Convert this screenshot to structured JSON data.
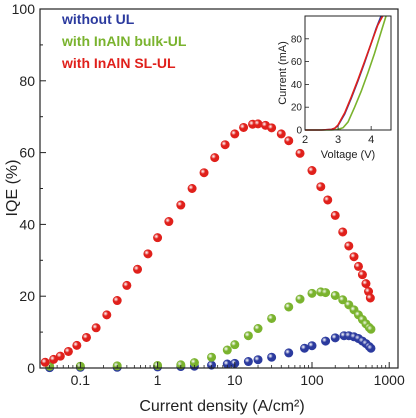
{
  "chart_data": [
    {
      "type": "scatter",
      "title": "",
      "xlabel": "Current density (A/cm²)",
      "ylabel": "IQE (%)",
      "xscale": "log",
      "xlim": [
        0.03,
        1300
      ],
      "ylim": [
        0,
        100
      ],
      "x_ticks": [
        0.1,
        1,
        10,
        100,
        1000
      ],
      "x_tick_labels": [
        "0.1",
        "1",
        "10",
        "100",
        "1000"
      ],
      "y_ticks": [
        0,
        20,
        40,
        60,
        80,
        100
      ],
      "y_tick_labels": [
        "0",
        "20",
        "40",
        "60",
        "80",
        "100"
      ],
      "legend_position": "top-left",
      "series": [
        {
          "name": "without UL",
          "color": "#2b3a9e",
          "x": [
            0.04,
            0.1,
            0.3,
            1,
            2,
            3,
            5,
            8,
            10,
            15,
            20,
            30,
            50,
            80,
            100,
            150,
            200,
            260,
            300,
            350,
            400,
            450,
            500,
            550,
            580
          ],
          "y": [
            0.1,
            0.2,
            0.2,
            0.3,
            0.4,
            0.5,
            0.8,
            1.1,
            1.3,
            1.8,
            2.3,
            3.0,
            4.2,
            5.5,
            6.2,
            7.5,
            8.4,
            9.0,
            9.0,
            8.7,
            8.2,
            7.5,
            6.8,
            6.0,
            5.5
          ]
        },
        {
          "name": "with InAlN bulk-UL",
          "color": "#7ab32e",
          "x": [
            0.04,
            0.1,
            0.3,
            1,
            2,
            3,
            5,
            8,
            10,
            15,
            20,
            30,
            50,
            70,
            100,
            130,
            150,
            200,
            250,
            300,
            350,
            400,
            450,
            500,
            550,
            580
          ],
          "y": [
            0.5,
            0.5,
            0.6,
            0.7,
            0.9,
            1.5,
            3.0,
            5.0,
            6.5,
            9.0,
            11.0,
            13.8,
            17.0,
            19.2,
            20.8,
            21.2,
            21.0,
            20.2,
            19.0,
            17.6,
            16.2,
            14.8,
            13.5,
            12.3,
            11.3,
            10.8
          ]
        },
        {
          "name": "with InAlN SL-UL",
          "color": "#e0201b",
          "x": [
            0.035,
            0.045,
            0.055,
            0.07,
            0.09,
            0.12,
            0.16,
            0.22,
            0.3,
            0.4,
            0.55,
            0.75,
            1.0,
            1.4,
            2.0,
            2.8,
            4.0,
            5.5,
            7.5,
            10,
            13,
            17,
            20,
            25,
            30,
            40,
            50,
            70,
            100,
            130,
            160,
            200,
            250,
            300,
            350,
            400,
            450,
            500,
            540,
            570
          ],
          "y": [
            1.6,
            2.4,
            3.3,
            4.6,
            6.3,
            8.5,
            11.2,
            14.8,
            18.8,
            23.0,
            27.5,
            31.8,
            36.3,
            40.8,
            45.4,
            50.0,
            54.4,
            58.6,
            62.2,
            65.2,
            67.0,
            67.9,
            68.0,
            67.6,
            66.9,
            65.2,
            63.3,
            59.8,
            55.0,
            50.5,
            46.8,
            42.5,
            37.9,
            34.0,
            31.0,
            28.3,
            26.0,
            23.5,
            21.3,
            19.5
          ]
        }
      ]
    },
    {
      "type": "line",
      "title": "",
      "xlabel": "Voltage (V)",
      "ylabel": "Current (mA)",
      "xlim": [
        2,
        4.6
      ],
      "ylim": [
        0,
        100
      ],
      "x_ticks": [
        2,
        3,
        4
      ],
      "x_tick_labels": [
        "2",
        "3",
        "4"
      ],
      "y_ticks": [
        0,
        20,
        40,
        60,
        80
      ],
      "y_tick_labels": [
        "0",
        "20",
        "40",
        "60",
        "80"
      ],
      "series": [
        {
          "name": "without UL",
          "color": "#2b3a9e",
          "x": [
            2.0,
            2.5,
            2.8,
            2.9,
            3.0,
            3.2,
            3.4,
            3.6,
            3.8,
            4.0,
            4.15,
            4.3
          ],
          "y": [
            0,
            0,
            0.5,
            1.5,
            4.0,
            14,
            28,
            43,
            59,
            76,
            89,
            100
          ]
        },
        {
          "name": "with InAlN bulk-UL",
          "color": "#7ab32e",
          "x": [
            2.0,
            2.8,
            3.0,
            3.15,
            3.3,
            3.5,
            3.7,
            3.9,
            4.1,
            4.3,
            4.45
          ],
          "y": [
            0,
            0,
            0.5,
            2.0,
            7.0,
            20,
            34,
            50,
            67,
            86,
            100
          ]
        },
        {
          "name": "with InAlN SL-UL",
          "color": "#e0201b",
          "x": [
            2.0,
            2.5,
            2.8,
            2.9,
            3.0,
            3.2,
            3.4,
            3.6,
            3.8,
            4.0,
            4.2,
            4.35
          ],
          "y": [
            0,
            0,
            0.5,
            1.5,
            4.5,
            15,
            29,
            44,
            60,
            76,
            92,
            100
          ]
        }
      ]
    }
  ]
}
